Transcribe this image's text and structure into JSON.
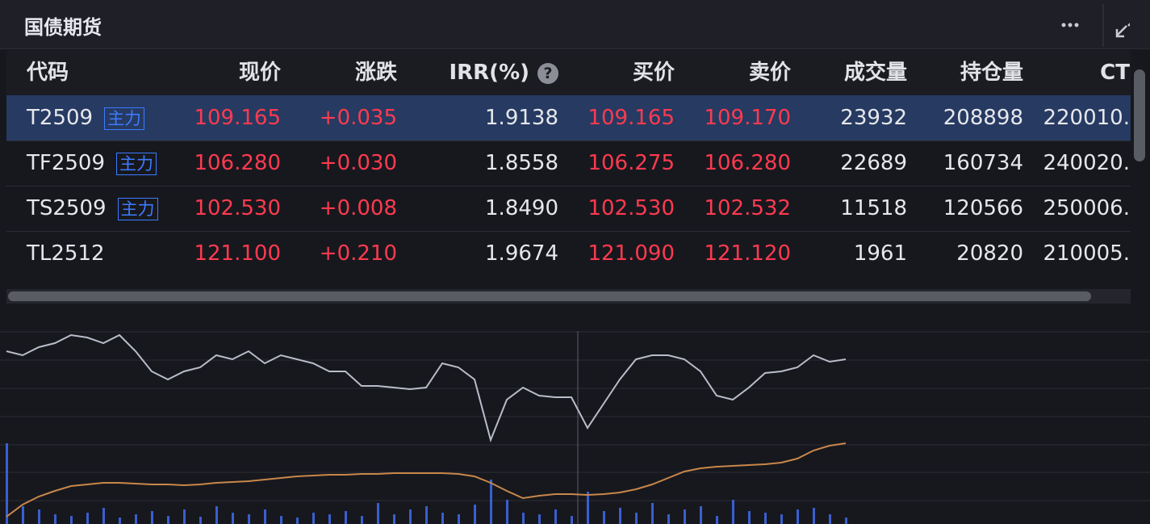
{
  "header": {
    "title": "国债期货"
  },
  "table": {
    "columns": [
      "代码",
      "现价",
      "涨跌",
      "IRR(%)",
      "买价",
      "卖价",
      "成交量",
      "持仓量",
      "CT"
    ],
    "help_icon": "?",
    "rows": [
      {
        "code": "T2509",
        "tag": "主力",
        "values": [
          "109.165",
          "+0.035",
          "1.9138",
          "109.165",
          "109.170",
          "23932",
          "208898",
          "220010."
        ]
      },
      {
        "code": "TF2509",
        "tag": "主力",
        "values": [
          "106.280",
          "+0.030",
          "1.8558",
          "106.275",
          "106.280",
          "22689",
          "160734",
          "240020."
        ]
      },
      {
        "code": "TS2509",
        "tag": "主力",
        "values": [
          "102.530",
          "+0.008",
          "1.8490",
          "102.530",
          "102.532",
          "11518",
          "120566",
          "250006."
        ]
      },
      {
        "code": "TL2512",
        "values": [
          "121.100",
          "+0.210",
          "1.9674",
          "121.090",
          "121.120",
          "1961",
          "20820",
          "210005."
        ]
      }
    ]
  },
  "chart_data": [
    {
      "type": "line",
      "ylim": [
        0,
        240
      ],
      "grid": true,
      "series": [
        {
          "color": "#b9bdc9",
          "values": [
            214,
            209,
            219,
            224,
            234,
            231,
            224,
            234,
            214,
            189,
            179,
            189,
            194,
            209,
            204,
            214,
            199,
            209,
            204,
            199,
            189,
            189,
            171,
            171,
            169,
            167,
            169,
            199,
            194,
            179,
            104,
            154,
            169,
            159,
            157,
            157,
            119,
            149,
            179,
            204,
            209,
            209,
            204,
            189,
            159,
            154,
            169,
            187,
            189,
            194,
            209,
            201,
            204
          ]
        },
        {
          "color": "#c8874a",
          "values": [
            9,
            24,
            34,
            41,
            47,
            49,
            51,
            51,
            50,
            49,
            49,
            48,
            49,
            51,
            52,
            53,
            55,
            57,
            59,
            60,
            61,
            61,
            62,
            62,
            63,
            63,
            63,
            63,
            62,
            59,
            51,
            41,
            32,
            35,
            37,
            37,
            36,
            37,
            39,
            43,
            49,
            57,
            65,
            69,
            71,
            72,
            73,
            74,
            76,
            81,
            91,
            97,
            100
          ]
        }
      ]
    },
    {
      "type": "bar",
      "ylim": [
        0,
        100
      ],
      "color": "#3a5fd0",
      "values": [
        100,
        22,
        18,
        12,
        10,
        14,
        20,
        8,
        12,
        16,
        10,
        18,
        9,
        22,
        14,
        12,
        18,
        10,
        8,
        14,
        12,
        16,
        10,
        26,
        12,
        18,
        22,
        14,
        12,
        24,
        55,
        30,
        14,
        12,
        18,
        10,
        40,
        16,
        20,
        14,
        26,
        12,
        18,
        22,
        10,
        30,
        16,
        14,
        12,
        18,
        20,
        12,
        8
      ]
    }
  ]
}
